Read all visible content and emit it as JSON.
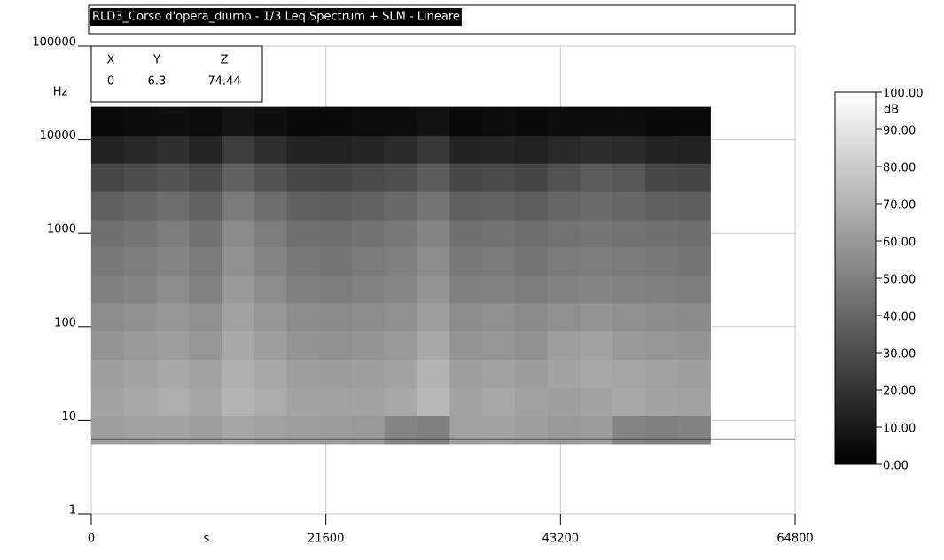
{
  "chart_data": {
    "type": "heatmap",
    "title": "RLD3_Corso d'opera_diurno - 1/3 Leq Spectrum + SLM - Lineare",
    "x_label": "s",
    "y_label": "Hz",
    "colorbar_label": "dB",
    "xlim": [
      0,
      64800
    ],
    "xticks": [
      0,
      21600,
      43200,
      64800
    ],
    "ylim": [
      1,
      100000
    ],
    "yticks": [
      1,
      10,
      100,
      1000,
      10000,
      100000
    ],
    "y_scale": "log",
    "grid": true,
    "clim": [
      0,
      100
    ],
    "cticks": [
      {
        "value": 0,
        "label": "0.00"
      },
      {
        "value": 10,
        "label": "10.00"
      },
      {
        "value": 20,
        "label": "20.00"
      },
      {
        "value": 30,
        "label": "30.00"
      },
      {
        "value": 40,
        "label": "40.00"
      },
      {
        "value": 50,
        "label": "50.00"
      },
      {
        "value": 60,
        "label": "60.00"
      },
      {
        "value": 70,
        "label": "70.00"
      },
      {
        "value": 80,
        "label": "80.00"
      },
      {
        "value": 90,
        "label": "90.00"
      },
      {
        "value": 100,
        "label": "100.00"
      }
    ],
    "reference_line": 6.3,
    "cursor": {
      "headers": [
        "X",
        "Y",
        "Z"
      ],
      "values": [
        0,
        6.3,
        74.44
      ]
    },
    "x_edges": [
      0,
      3000,
      6000,
      9000,
      12000,
      15000,
      18000,
      21000,
      24000,
      27000,
      30000,
      33000,
      36000,
      39000,
      42000,
      45000,
      48000,
      51000,
      54000,
      57000
    ],
    "y_edges": [
      5.6,
      11.2,
      22.4,
      45,
      90,
      180,
      355,
      710,
      1400,
      2800,
      5600,
      11200,
      22400
    ],
    "z": [
      [
        62,
        63,
        64,
        62,
        65,
        63,
        62,
        61,
        60,
        52,
        50,
        63,
        64,
        62,
        60,
        61,
        52,
        50,
        51
      ],
      [
        64,
        66,
        68,
        65,
        70,
        67,
        64,
        63,
        64,
        66,
        72,
        64,
        66,
        63,
        62,
        64,
        66,
        64,
        63
      ],
      [
        62,
        64,
        66,
        63,
        69,
        66,
        62,
        61,
        62,
        64,
        70,
        62,
        63,
        61,
        64,
        66,
        65,
        63,
        62
      ],
      [
        58,
        60,
        62,
        59,
        66,
        62,
        58,
        57,
        58,
        60,
        66,
        58,
        59,
        57,
        62,
        64,
        60,
        59,
        58
      ],
      [
        55,
        57,
        59,
        56,
        63,
        59,
        55,
        54,
        55,
        57,
        62,
        55,
        56,
        54,
        56,
        58,
        56,
        55,
        54
      ],
      [
        50,
        52,
        55,
        51,
        60,
        55,
        50,
        49,
        51,
        53,
        58,
        50,
        51,
        49,
        51,
        52,
        51,
        50,
        49
      ],
      [
        47,
        49,
        52,
        48,
        57,
        52,
        47,
        46,
        48,
        50,
        55,
        47,
        48,
        46,
        48,
        49,
        48,
        47,
        46
      ],
      [
        44,
        46,
        49,
        45,
        54,
        49,
        44,
        43,
        45,
        47,
        52,
        44,
        45,
        43,
        45,
        46,
        45,
        44,
        43
      ],
      [
        38,
        40,
        43,
        39,
        48,
        43,
        38,
        37,
        39,
        41,
        46,
        38,
        39,
        37,
        40,
        42,
        40,
        38,
        37
      ],
      [
        28,
        30,
        33,
        29,
        38,
        33,
        28,
        27,
        29,
        31,
        36,
        28,
        29,
        27,
        32,
        36,
        34,
        28,
        27
      ],
      [
        14,
        16,
        19,
        15,
        24,
        19,
        14,
        13,
        15,
        17,
        22,
        14,
        15,
        13,
        16,
        18,
        17,
        14,
        13
      ],
      [
        4,
        5,
        6,
        5,
        8,
        6,
        4,
        4,
        5,
        5,
        7,
        4,
        5,
        4,
        5,
        5,
        5,
        4,
        4
      ]
    ]
  }
}
